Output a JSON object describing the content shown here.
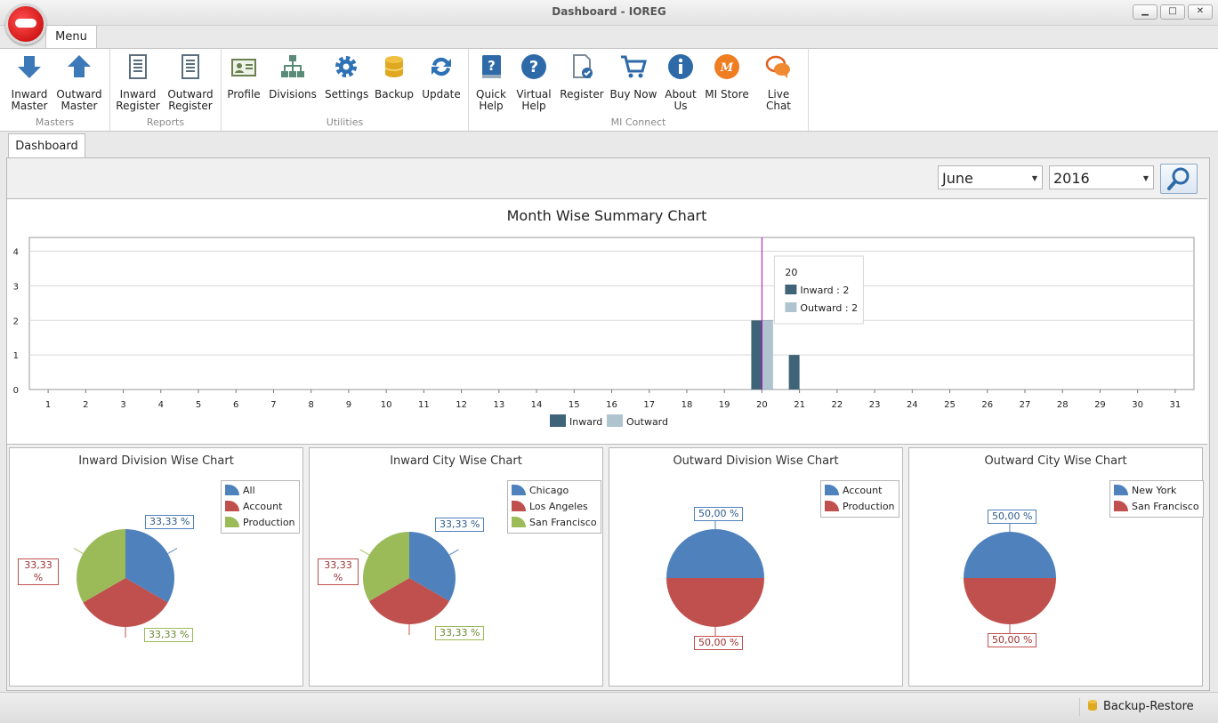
{
  "window": {
    "title": "Dashboard - IOREG",
    "min": "▁",
    "max": "□",
    "close": "✕"
  },
  "ribbon": {
    "menu_tab": "Menu",
    "groups": {
      "masters": {
        "label": "Masters",
        "inward": "Inward\nMaster",
        "outward": "Outward\nMaster"
      },
      "reports": {
        "label": "Reports",
        "inward": "Inward\nRegister",
        "outward": "Outward\nRegister"
      },
      "utilities": {
        "label": "Utilities",
        "profile": "Profile",
        "divisions": "Divisions",
        "settings": "Settings",
        "backup": "Backup",
        "update": "Update"
      },
      "mi_connect": {
        "label": "MI Connect",
        "quick_help": "Quick\nHelp",
        "virtual_help": "Virtual\nHelp",
        "register": "Register",
        "buy_now": "Buy Now",
        "about_us": "About\nUs",
        "mi_store": "MI Store",
        "live_chat": "Live Chat"
      }
    }
  },
  "tabs": {
    "dashboard": "Dashboard"
  },
  "filters": {
    "month": "June",
    "year": "2016"
  },
  "colors": {
    "inward": "#3f6478",
    "outward": "#b0c4d0",
    "blue": "#4f81bd",
    "red": "#c0504d",
    "green": "#9bbb59",
    "accent": "#c000c0"
  },
  "chart_data": [
    {
      "type": "bar",
      "title": "Month Wise Summary Chart",
      "categories": [
        "1",
        "2",
        "3",
        "4",
        "5",
        "6",
        "7",
        "8",
        "9",
        "10",
        "11",
        "12",
        "13",
        "14",
        "15",
        "16",
        "17",
        "18",
        "19",
        "20",
        "21",
        "22",
        "23",
        "24",
        "25",
        "26",
        "27",
        "28",
        "29",
        "30",
        "31"
      ],
      "series": [
        {
          "name": "Inward",
          "values": [
            0,
            0,
            0,
            0,
            0,
            0,
            0,
            0,
            0,
            0,
            0,
            0,
            0,
            0,
            0,
            0,
            0,
            0,
            0,
            2,
            1,
            0,
            0,
            0,
            0,
            0,
            0,
            0,
            0,
            0,
            0
          ]
        },
        {
          "name": "Outward",
          "values": [
            0,
            0,
            0,
            0,
            0,
            0,
            0,
            0,
            0,
            0,
            0,
            0,
            0,
            0,
            0,
            0,
            0,
            0,
            0,
            2,
            0,
            0,
            0,
            0,
            0,
            0,
            0,
            0,
            0,
            0,
            0
          ]
        }
      ],
      "yticks": [
        "0",
        "1",
        "2",
        "3",
        "4"
      ],
      "ylim": [
        0,
        4.4
      ],
      "grid": true,
      "legend": "bottom",
      "tooltip": {
        "title": "20",
        "inward": "Inward : 2",
        "outward": "Outward : 2"
      }
    },
    {
      "type": "pie",
      "title": "Inward Division Wise Chart",
      "labels": [
        "All",
        "Account",
        "Production"
      ],
      "values": [
        33.33,
        33.33,
        33.33
      ],
      "label_texts": [
        "33,33 %",
        "33,33\n%",
        "33,33 %"
      ]
    },
    {
      "type": "pie",
      "title": "Inward City Wise Chart",
      "labels": [
        "Chicago",
        "Los Angeles",
        "San Francisco"
      ],
      "values": [
        33.33,
        33.33,
        33.33
      ],
      "label_texts": [
        "33,33 %",
        "33,33\n%",
        "33,33 %"
      ]
    },
    {
      "type": "pie",
      "title": "Outward Division Wise Chart",
      "labels": [
        "Account",
        "Production"
      ],
      "values": [
        50,
        50
      ],
      "label_texts": [
        "50,00 %",
        "50,00 %"
      ]
    },
    {
      "type": "pie",
      "title": "Outward City Wise Chart",
      "labels": [
        "New York",
        "San Francisco"
      ],
      "values": [
        50,
        50
      ],
      "label_texts": [
        "50,00 %",
        "50,00 %"
      ]
    }
  ],
  "status": {
    "backup_restore": "Backup-Restore"
  }
}
